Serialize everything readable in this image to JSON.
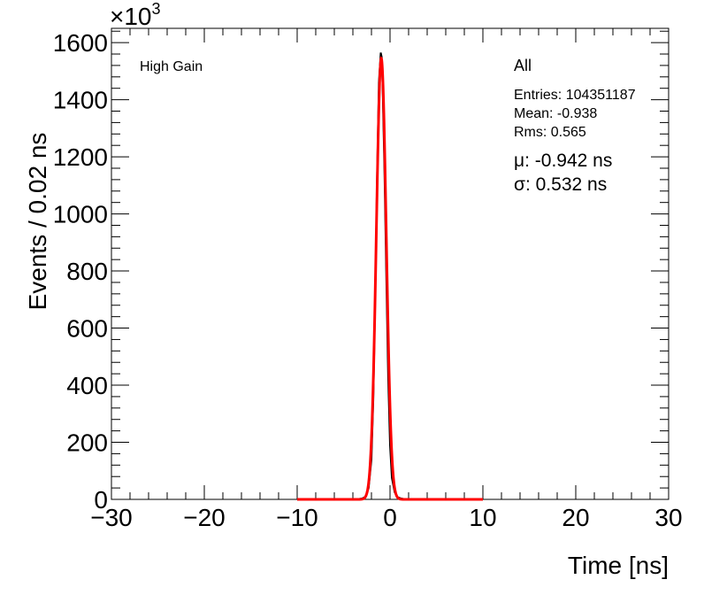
{
  "chart_data": {
    "type": "line",
    "xlabel": "Time [ns]",
    "ylabel": "Events / 0.02 ns",
    "y_multiplier": "×10",
    "y_multiplier_exp": "3",
    "xlim": [
      -30,
      30
    ],
    "ylim": [
      0,
      1650
    ],
    "x_ticks": [
      -30,
      -20,
      -10,
      0,
      10,
      20,
      30
    ],
    "x_tick_labels": [
      "−30",
      "−20",
      "−10",
      "0",
      "10",
      "20",
      "30"
    ],
    "y_ticks": [
      0,
      200,
      400,
      600,
      800,
      1000,
      1200,
      1400,
      1600
    ],
    "y_tick_labels": [
      "0",
      "200",
      "400",
      "600",
      "800",
      "1000",
      "1200",
      "1400",
      "1600"
    ],
    "grid": false,
    "series": [
      {
        "color": "#000000",
        "style": "histogram",
        "x": [
          -10.0,
          -4.0,
          -3.5,
          -3.0,
          -2.6,
          -2.3,
          -2.0,
          -1.8,
          -1.6,
          -1.4,
          -1.2,
          -1.0,
          -0.9,
          -0.8,
          -0.6,
          -0.4,
          -0.2,
          0.0,
          0.2,
          0.5,
          0.8,
          1.2,
          1.6,
          2.0,
          10.0
        ],
        "y": [
          0,
          0,
          1,
          3,
          10,
          40,
          140,
          350,
          700,
          1120,
          1460,
          1565,
          1550,
          1450,
          1150,
          780,
          430,
          190,
          75,
          25,
          8,
          3,
          1,
          0,
          0
        ]
      },
      {
        "color": "#ff0000",
        "style": "fit",
        "fit_mean": -0.942,
        "fit_sigma": 0.532,
        "fit_peak": 1545,
        "fit_range": [
          -10,
          10
        ]
      }
    ]
  },
  "stats": {
    "label": "High Gain",
    "name": "All",
    "entries": "Entries: 104351187",
    "mean": "Mean: -0.938",
    "rms": "Rms: 0.565",
    "mu": "μ: -0.942 ns",
    "sigma": "σ: 0.532 ns"
  }
}
